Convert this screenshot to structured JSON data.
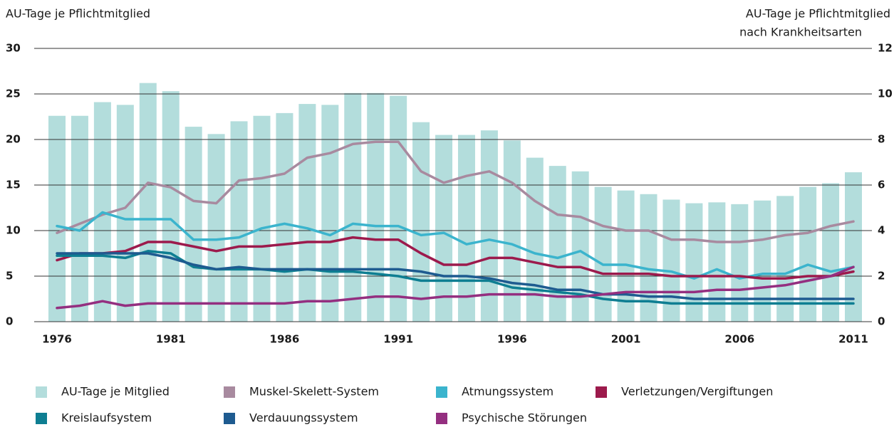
{
  "chart_data": {
    "type": "combo",
    "y_label": "AU-Tage je Pflichtmitglied",
    "y2_label": [
      "AU-Tage je Pflichtmitglied",
      "nach Krankheitsarten"
    ],
    "categories": [
      "1976",
      null,
      null,
      null,
      null,
      "1981",
      null,
      null,
      null,
      null,
      "1986",
      null,
      null,
      null,
      null,
      "1991",
      null,
      null,
      null,
      null,
      "1996",
      null,
      null,
      null,
      null,
      "2001",
      null,
      null,
      null,
      null,
      "2006",
      null,
      null,
      null,
      null,
      "2011"
    ],
    "ylim": [
      0,
      30
    ],
    "yticks": [
      0,
      5,
      10,
      15,
      20,
      25,
      30
    ],
    "y2lim": [
      0,
      12
    ],
    "y2ticks": [
      0,
      2,
      4,
      6,
      8,
      10,
      12
    ],
    "grid": true,
    "series": [
      {
        "name": "AU-Tage je Mitglied",
        "type": "bar",
        "color": "#b3dddc",
        "values": [
          22.6,
          22.6,
          24.1,
          23.8,
          26.2,
          25.3,
          21.4,
          20.6,
          22.0,
          22.6,
          22.9,
          23.9,
          23.8,
          25.1,
          25.1,
          24.8,
          21.9,
          20.5,
          20.5,
          21.0,
          19.9,
          18.0,
          17.1,
          16.5,
          14.8,
          14.4,
          14.0,
          13.4,
          13.0,
          13.1,
          12.9,
          13.3,
          13.8,
          14.8,
          15.2,
          16.4
        ]
      },
      {
        "name": "Muskel-Skelett-System",
        "type": "line",
        "axis": "y2",
        "color": "#a88a9f",
        "values": [
          3.9,
          4.3,
          4.7,
          5.0,
          6.1,
          5.9,
          5.3,
          5.2,
          6.2,
          6.3,
          6.5,
          7.2,
          7.4,
          7.8,
          7.9,
          7.9,
          6.6,
          6.1,
          6.4,
          6.6,
          6.1,
          5.3,
          4.7,
          4.6,
          4.2,
          4.0,
          4.0,
          3.6,
          3.6,
          3.5,
          3.5,
          3.6,
          3.8,
          3.9,
          4.2,
          4.4
        ]
      },
      {
        "name": "Atmungssystem",
        "type": "line",
        "axis": "y2",
        "color": "#3bb4cd",
        "values": [
          4.2,
          4.0,
          4.8,
          4.5,
          4.5,
          4.5,
          3.6,
          3.6,
          3.7,
          4.1,
          4.3,
          4.1,
          3.8,
          4.3,
          4.2,
          4.2,
          3.8,
          3.9,
          3.4,
          3.6,
          3.4,
          3.0,
          2.8,
          3.1,
          2.5,
          2.5,
          2.3,
          2.2,
          1.9,
          2.3,
          1.9,
          2.1,
          2.1,
          2.5,
          2.2,
          2.4
        ]
      },
      {
        "name": "Verletzungen/Vergiftungen",
        "type": "line",
        "axis": "y2",
        "color": "#9c1a4c",
        "values": [
          2.7,
          3.0,
          3.0,
          3.1,
          3.5,
          3.5,
          3.3,
          3.1,
          3.3,
          3.3,
          3.4,
          3.5,
          3.5,
          3.7,
          3.6,
          3.6,
          3.0,
          2.5,
          2.5,
          2.8,
          2.8,
          2.6,
          2.4,
          2.4,
          2.1,
          2.1,
          2.1,
          2.0,
          2.0,
          2.0,
          2.0,
          1.9,
          1.9,
          2.0,
          2.0,
          2.2
        ]
      },
      {
        "name": "Kreislaufsystem",
        "type": "line",
        "axis": "y2",
        "color": "#0e7e92",
        "values": [
          2.9,
          2.9,
          2.9,
          2.8,
          3.1,
          3.0,
          2.4,
          2.3,
          2.3,
          2.3,
          2.2,
          2.3,
          2.2,
          2.2,
          2.1,
          2.0,
          1.8,
          1.8,
          1.8,
          1.8,
          1.5,
          1.4,
          1.3,
          1.2,
          1.0,
          0.9,
          0.9,
          0.8,
          0.8,
          0.8,
          0.8,
          0.8,
          0.8,
          0.8,
          0.8,
          0.8
        ]
      },
      {
        "name": "Verdauungssystem",
        "type": "line",
        "axis": "y2",
        "color": "#1e5b90",
        "values": [
          3.0,
          3.0,
          3.0,
          3.0,
          3.0,
          2.8,
          2.5,
          2.3,
          2.4,
          2.3,
          2.3,
          2.3,
          2.3,
          2.3,
          2.3,
          2.3,
          2.2,
          2.0,
          2.0,
          1.9,
          1.7,
          1.6,
          1.4,
          1.4,
          1.2,
          1.2,
          1.1,
          1.1,
          1.0,
          1.0,
          1.0,
          1.0,
          1.0,
          1.0,
          1.0,
          1.0
        ]
      },
      {
        "name": "Psychische Störungen",
        "type": "line",
        "axis": "y2",
        "color": "#942f80",
        "values": [
          0.6,
          0.7,
          0.9,
          0.7,
          0.8,
          0.8,
          0.8,
          0.8,
          0.8,
          0.8,
          0.8,
          0.9,
          0.9,
          1.0,
          1.1,
          1.1,
          1.0,
          1.1,
          1.1,
          1.2,
          1.2,
          1.2,
          1.1,
          1.1,
          1.2,
          1.3,
          1.3,
          1.3,
          1.3,
          1.4,
          1.4,
          1.5,
          1.6,
          1.8,
          2.0,
          2.4
        ]
      }
    ]
  }
}
